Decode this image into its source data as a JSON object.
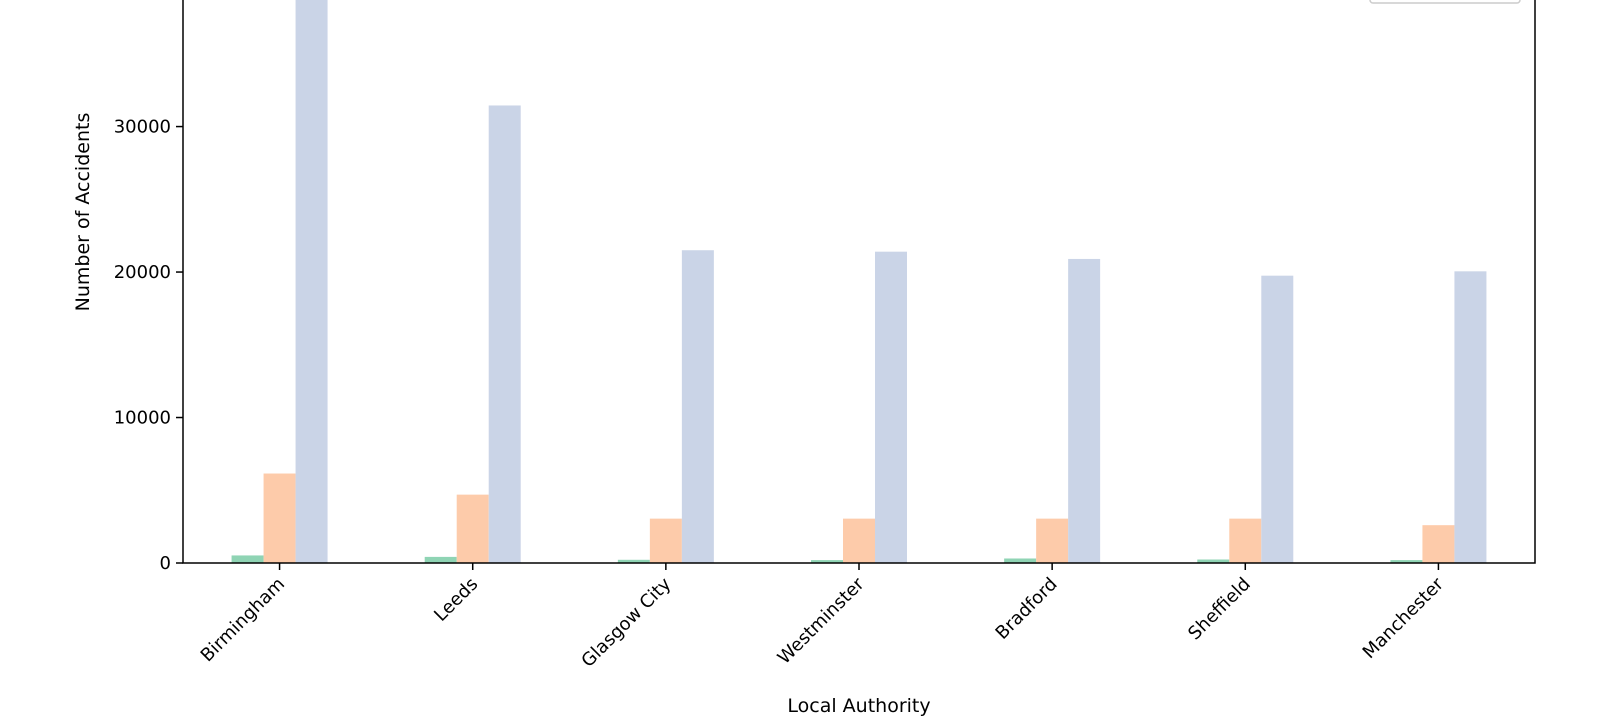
{
  "chart_data": {
    "type": "bar",
    "title": "",
    "xlabel": "Local Authority",
    "ylabel": "Number of Accidents",
    "categories": [
      "Birmingham",
      "Leeds",
      "Glasgow City",
      "Westminster",
      "Bradford",
      "Sheffield",
      "Manchester"
    ],
    "series": [
      {
        "color": "#8fd4b4",
        "values": [
          520,
          420,
          220,
          200,
          310,
          240,
          200
        ]
      },
      {
        "color": "#fdcbaa",
        "values": [
          6150,
          4700,
          3050,
          3050,
          3050,
          3050,
          2600
        ]
      },
      {
        "color": "#cad4e7",
        "values": [
          39000,
          31450,
          21500,
          21400,
          20900,
          19750,
          20050
        ]
      }
    ],
    "y_ticks": [
      0,
      10000,
      20000,
      30000
    ],
    "ylim": [
      0,
      38700
    ],
    "grid": false,
    "legend": "top-right"
  }
}
